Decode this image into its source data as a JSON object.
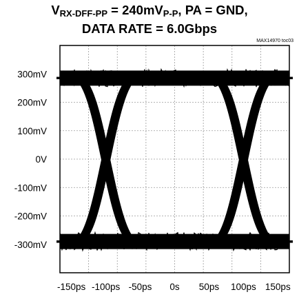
{
  "chart_data": {
    "type": "line",
    "title_main": "V",
    "title_sub1": "RX-DFF-PP",
    "title_mid": " = 240mV",
    "title_sub2": "P-P",
    "title_end": ", PA = GND,",
    "subtitle": "DATA RATE = 6.0Gbps",
    "figure_id": "MAX14970 toc03",
    "xlabel": "",
    "ylabel": "",
    "x_ticks": [
      "-150ps",
      "-100ps",
      "-50ps",
      "0s",
      "50ps",
      "100ps",
      "150ps"
    ],
    "y_ticks": [
      "300mV",
      "200mV",
      "100mV",
      "0V",
      "-100mV",
      "-200mV",
      "-300mV"
    ],
    "xlim": [
      -166.7,
      166.7
    ],
    "ylim": [
      -400,
      400
    ],
    "grid": true,
    "grid_style": "dashed",
    "eye": {
      "high_level_mV": 285,
      "low_level_mV": -290,
      "crossing_times_ps": [
        -100,
        100
      ],
      "unit_interval_ps": 166.7
    }
  }
}
